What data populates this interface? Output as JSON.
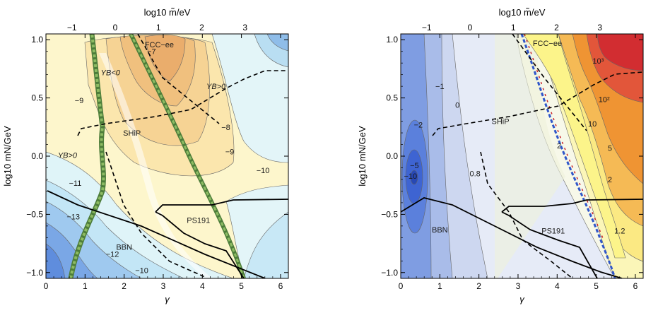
{
  "chart_data": [
    {
      "type": "contour",
      "xlabel": "γ",
      "ylabel": "log10 mN/GeV",
      "top_xlabel": "log10 m̃/eV",
      "xlim": [
        0,
        6.2
      ],
      "ylim": [
        -1.05,
        1.05
      ],
      "top_xlim": [
        -1.6,
        4.0
      ],
      "x_ticks": [
        "0",
        "1",
        "2",
        "3",
        "4",
        "5",
        "6"
      ],
      "y_ticks": [
        "-1.0",
        "-0.5",
        "0.0",
        "0.5",
        "1.0"
      ],
      "top_ticks": [
        "-1",
        "0",
        "1",
        "2",
        "3"
      ],
      "contour_labels": [
        {
          "text": "-7",
          "x": 2.7,
          "y": 0.9
        },
        {
          "text": "-8",
          "x": 4.6,
          "y": 0.25
        },
        {
          "text": "-9",
          "x": 0.85,
          "y": 0.48
        },
        {
          "text": "-9",
          "x": 4.7,
          "y": 0.04
        },
        {
          "text": "-10",
          "x": 5.55,
          "y": -0.12
        },
        {
          "text": "-11",
          "x": 0.75,
          "y": -0.23
        },
        {
          "text": "-12",
          "x": 1.7,
          "y": -0.84
        },
        {
          "text": "-13",
          "x": 0.7,
          "y": -0.52
        },
        {
          "text": "-10",
          "x": 2.45,
          "y": -0.98
        }
      ],
      "region_labels": [
        {
          "text": "FCC−ee",
          "x": 2.9,
          "y": 0.96
        },
        {
          "text": "YB<0",
          "x": 1.65,
          "y": 0.72
        },
        {
          "text": "YB>0",
          "x": 4.35,
          "y": 0.6
        },
        {
          "text": "YB>0",
          "x": 0.55,
          "y": 0.01
        },
        {
          "text": "SHiP",
          "x": 2.2,
          "y": 0.2
        },
        {
          "text": "BBN",
          "x": 2.0,
          "y": -0.78
        },
        {
          "text": "PS191",
          "x": 3.9,
          "y": -0.55
        }
      ]
    },
    {
      "type": "contour",
      "xlabel": "γ",
      "ylabel": "log10 mN/GeV",
      "top_xlabel": "log10 m̃/eV",
      "xlim": [
        0,
        6.2
      ],
      "ylim": [
        -1.05,
        1.05
      ],
      "top_xlim": [
        -1.6,
        4.0
      ],
      "x_ticks": [
        "0",
        "1",
        "2",
        "3",
        "4",
        "5",
        "6"
      ],
      "y_ticks": [
        "-1.0",
        "-0.5",
        "0.0",
        "0.5",
        "1.0"
      ],
      "top_ticks": [
        "-1",
        "0",
        "1",
        "2",
        "3"
      ],
      "contour_labels": [
        {
          "text": "-1",
          "x": 1.0,
          "y": 0.6
        },
        {
          "text": "0",
          "x": 1.45,
          "y": 0.44
        },
        {
          "text": "-2",
          "x": 0.45,
          "y": 0.27
        },
        {
          "text": "-5",
          "x": 0.35,
          "y": -0.08
        },
        {
          "text": "-10",
          "x": 0.25,
          "y": -0.17
        },
        {
          "text": "0.8",
          "x": 1.9,
          "y": -0.15
        },
        {
          "text": "10³",
          "x": 5.05,
          "y": 0.82
        },
        {
          "text": "10²",
          "x": 5.2,
          "y": 0.49
        },
        {
          "text": "10",
          "x": 4.9,
          "y": 0.28
        },
        {
          "text": "2",
          "x": 4.05,
          "y": 0.09
        },
        {
          "text": "5",
          "x": 5.35,
          "y": 0.07
        },
        {
          "text": "2",
          "x": 5.35,
          "y": -0.2
        },
        {
          "text": "1.2",
          "x": 5.6,
          "y": -0.64
        }
      ],
      "region_labels": [
        {
          "text": "FCC−ee",
          "x": 3.75,
          "y": 0.97
        },
        {
          "text": "SHiP",
          "x": 2.55,
          "y": 0.3
        },
        {
          "text": "BBN",
          "x": 1.0,
          "y": -0.63
        },
        {
          "text": "PS191",
          "x": 3.9,
          "y": -0.64
        }
      ]
    }
  ]
}
